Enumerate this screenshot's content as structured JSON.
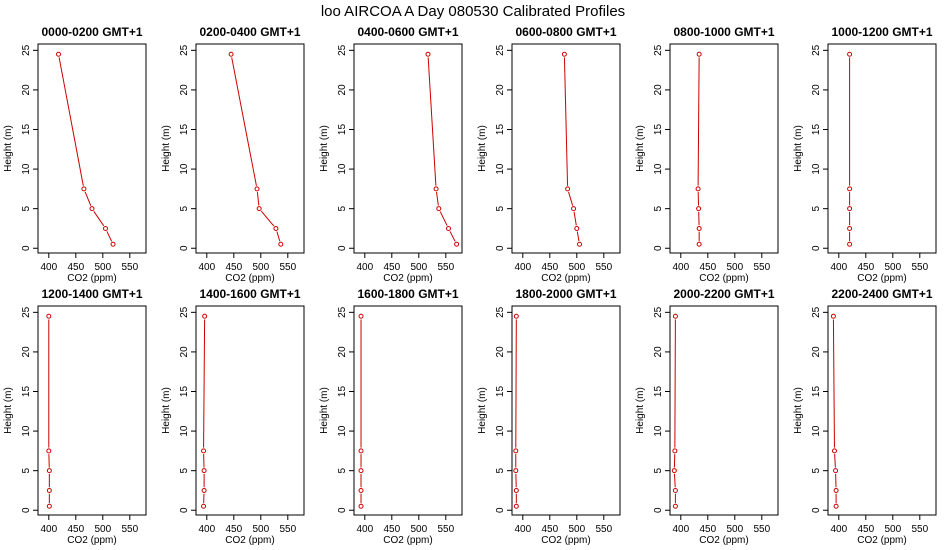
{
  "title": "loo AIRCOA A  Day 080530  Calibrated Profiles",
  "chart_data": [
    {
      "type": "line",
      "title": "0000-0200 GMT+1",
      "xlabel": "CO2 (ppm)",
      "ylabel": "Height (m)",
      "xlim": [
        380,
        580
      ],
      "ylim": [
        0,
        25
      ],
      "xticks": [
        400,
        450,
        500,
        550
      ],
      "yticks": [
        0,
        5,
        10,
        15,
        20,
        25
      ],
      "series": [
        {
          "x": [
            418,
            465,
            480,
            505,
            519
          ],
          "y": [
            24.5,
            7.5,
            5,
            2.5,
            0.5
          ]
        }
      ]
    },
    {
      "type": "line",
      "title": "0200-0400 GMT+1",
      "xlabel": "CO2 (ppm)",
      "ylabel": "Height (m)",
      "xlim": [
        380,
        580
      ],
      "ylim": [
        0,
        25
      ],
      "xticks": [
        400,
        450,
        500,
        550
      ],
      "yticks": [
        0,
        5,
        10,
        15,
        20,
        25
      ],
      "series": [
        {
          "x": [
            445,
            493,
            497,
            528,
            537
          ],
          "y": [
            24.5,
            7.5,
            5,
            2.5,
            0.5
          ]
        }
      ]
    },
    {
      "type": "line",
      "title": "0400-0600 GMT+1",
      "xlabel": "CO2 (ppm)",
      "ylabel": "Height (m)",
      "xlim": [
        380,
        580
      ],
      "ylim": [
        0,
        25
      ],
      "xticks": [
        400,
        450,
        500,
        550
      ],
      "yticks": [
        0,
        5,
        10,
        15,
        20,
        25
      ],
      "series": [
        {
          "x": [
            517,
            532,
            537,
            555,
            570
          ],
          "y": [
            24.5,
            7.5,
            5,
            2.5,
            0.5
          ]
        }
      ]
    },
    {
      "type": "line",
      "title": "0600-0800 GMT+1",
      "xlabel": "CO2 (ppm)",
      "ylabel": "Height (m)",
      "xlim": [
        380,
        580
      ],
      "ylim": [
        0,
        25
      ],
      "xticks": [
        400,
        450,
        500,
        550
      ],
      "yticks": [
        0,
        5,
        10,
        15,
        20,
        25
      ],
      "series": [
        {
          "x": [
            477,
            483,
            494,
            500,
            505
          ],
          "y": [
            24.5,
            7.5,
            5,
            2.5,
            0.5
          ]
        }
      ]
    },
    {
      "type": "line",
      "title": "0800-1000 GMT+1",
      "xlabel": "CO2 (ppm)",
      "ylabel": "Height (m)",
      "xlim": [
        380,
        580
      ],
      "ylim": [
        0,
        25
      ],
      "xticks": [
        400,
        450,
        500,
        550
      ],
      "yticks": [
        0,
        5,
        10,
        15,
        20,
        25
      ],
      "series": [
        {
          "x": [
            434,
            432,
            433,
            434,
            434
          ],
          "y": [
            24.5,
            7.5,
            5,
            2.5,
            0.5
          ]
        }
      ]
    },
    {
      "type": "line",
      "title": "1000-1200 GMT+1",
      "xlabel": "CO2 (ppm)",
      "ylabel": "Height (m)",
      "xlim": [
        380,
        580
      ],
      "ylim": [
        0,
        25
      ],
      "xticks": [
        400,
        450,
        500,
        550
      ],
      "yticks": [
        0,
        5,
        10,
        15,
        20,
        25
      ],
      "series": [
        {
          "x": [
            420,
            420,
            420,
            420,
            420
          ],
          "y": [
            24.5,
            7.5,
            5,
            2.5,
            0.5
          ]
        }
      ]
    },
    {
      "type": "line",
      "title": "1200-1400 GMT+1",
      "xlabel": "CO2 (ppm)",
      "ylabel": "Height (m)",
      "xlim": [
        380,
        580
      ],
      "ylim": [
        0,
        25
      ],
      "xticks": [
        400,
        450,
        500,
        550
      ],
      "yticks": [
        0,
        5,
        10,
        15,
        20,
        25
      ],
      "series": [
        {
          "x": [
            400,
            400,
            401,
            401,
            401
          ],
          "y": [
            24.5,
            7.5,
            5,
            2.5,
            0.5
          ]
        }
      ]
    },
    {
      "type": "line",
      "title": "1400-1600 GMT+1",
      "xlabel": "CO2 (ppm)",
      "ylabel": "Height (m)",
      "xlim": [
        380,
        580
      ],
      "ylim": [
        0,
        25
      ],
      "xticks": [
        400,
        450,
        500,
        550
      ],
      "yticks": [
        0,
        5,
        10,
        15,
        20,
        25
      ],
      "series": [
        {
          "x": [
            396,
            394,
            395,
            395,
            394
          ],
          "y": [
            24.5,
            7.5,
            5,
            2.5,
            0.5
          ]
        }
      ]
    },
    {
      "type": "line",
      "title": "1600-1800 GMT+1",
      "xlabel": "CO2 (ppm)",
      "ylabel": "Height (m)",
      "xlim": [
        380,
        580
      ],
      "ylim": [
        0,
        25
      ],
      "xticks": [
        400,
        450,
        500,
        550
      ],
      "yticks": [
        0,
        5,
        10,
        15,
        20,
        25
      ],
      "series": [
        {
          "x": [
            393,
            393,
            393,
            393,
            393
          ],
          "y": [
            24.5,
            7.5,
            5,
            2.5,
            0.5
          ]
        }
      ]
    },
    {
      "type": "line",
      "title": "1800-2000 GMT+1",
      "xlabel": "CO2 (ppm)",
      "ylabel": "Height (m)",
      "xlim": [
        380,
        580
      ],
      "ylim": [
        0,
        25
      ],
      "xticks": [
        400,
        450,
        500,
        550
      ],
      "yticks": [
        0,
        5,
        10,
        15,
        20,
        25
      ],
      "series": [
        {
          "x": [
            388,
            387,
            387,
            388,
            388
          ],
          "y": [
            24.5,
            7.5,
            5,
            2.5,
            0.5
          ]
        }
      ]
    },
    {
      "type": "line",
      "title": "2000-2200 GMT+1",
      "xlabel": "CO2 (ppm)",
      "ylabel": "Height (m)",
      "xlim": [
        380,
        580
      ],
      "ylim": [
        0,
        25
      ],
      "xticks": [
        400,
        450,
        500,
        550
      ],
      "yticks": [
        0,
        5,
        10,
        15,
        20,
        25
      ],
      "series": [
        {
          "x": [
            390,
            389,
            388,
            390,
            390
          ],
          "y": [
            24.5,
            7.5,
            5,
            2.5,
            0.5
          ]
        }
      ]
    },
    {
      "type": "line",
      "title": "2200-2400 GMT+1",
      "xlabel": "CO2 (ppm)",
      "ylabel": "Height (m)",
      "xlim": [
        380,
        580
      ],
      "ylim": [
        0,
        25
      ],
      "xticks": [
        400,
        450,
        500,
        550
      ],
      "yticks": [
        0,
        5,
        10,
        15,
        20,
        25
      ],
      "series": [
        {
          "x": [
            390,
            392,
            394,
            395,
            395
          ],
          "y": [
            24.5,
            7.5,
            5,
            2.5,
            0.5
          ]
        }
      ]
    }
  ],
  "colors": {
    "series": "#cc0000",
    "axis": "#000000",
    "background": "#ffffff"
  }
}
